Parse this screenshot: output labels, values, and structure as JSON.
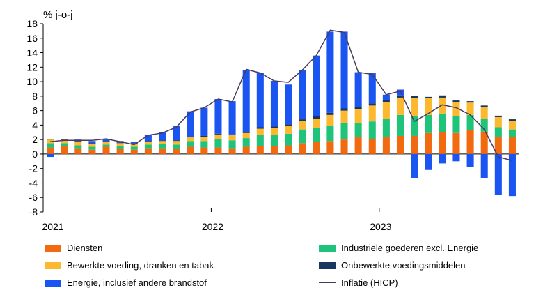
{
  "chart_data": {
    "type": "bar",
    "stacked": true,
    "unit_label": "% j-o-j",
    "ylim": [
      -8,
      18
    ],
    "y_ticks": [
      -8,
      -6,
      -4,
      -2,
      0,
      2,
      4,
      6,
      8,
      10,
      12,
      14,
      16,
      18
    ],
    "x_tick_labels": [
      "2021",
      "2022",
      "2023"
    ],
    "categories": [
      "2021-01",
      "2021-02",
      "2021-03",
      "2021-04",
      "2021-05",
      "2021-06",
      "2021-07",
      "2021-08",
      "2021-09",
      "2021-10",
      "2021-11",
      "2021-12",
      "2022-01",
      "2022-02",
      "2022-03",
      "2022-04",
      "2022-05",
      "2022-06",
      "2022-07",
      "2022-08",
      "2022-09",
      "2022-10",
      "2022-11",
      "2022-12",
      "2023-01",
      "2023-02",
      "2023-03",
      "2023-04",
      "2023-05",
      "2023-06",
      "2023-07",
      "2023-08",
      "2023-09",
      "2023-10"
    ],
    "series": [
      {
        "name": "Diensten",
        "color": "#f26a10",
        "values": [
          0.9,
          1.1,
          0.8,
          0.6,
          1.0,
          0.7,
          0.6,
          0.8,
          0.8,
          0.7,
          1.0,
          0.9,
          0.9,
          0.8,
          1.0,
          1.1,
          1.1,
          1.2,
          1.5,
          1.7,
          1.8,
          2.0,
          2.3,
          2.1,
          2.3,
          2.5,
          2.5,
          2.9,
          3.0,
          2.9,
          3.3,
          3.1,
          2.3,
          2.4
        ]
      },
      {
        "name": "Industriële goederen excl. Energie",
        "color": "#1fc47a",
        "values": [
          0.6,
          0.4,
          0.4,
          0.4,
          0.3,
          0.4,
          0.4,
          0.5,
          0.6,
          0.6,
          0.8,
          0.9,
          1.2,
          1.1,
          1.2,
          1.5,
          1.5,
          1.6,
          1.9,
          1.9,
          2.1,
          2.3,
          2.0,
          2.4,
          2.6,
          2.9,
          2.7,
          2.5,
          2.6,
          2.3,
          2.1,
          1.8,
          1.4,
          1.0
        ]
      },
      {
        "name": "Bewerkte voeding, dranken en tabak",
        "color": "#fcb930",
        "values": [
          0.5,
          0.4,
          0.5,
          0.4,
          0.4,
          0.4,
          0.4,
          0.4,
          0.4,
          0.5,
          0.5,
          0.6,
          0.6,
          0.7,
          0.7,
          0.9,
          1.0,
          1.1,
          1.2,
          1.3,
          1.5,
          1.7,
          1.9,
          2.2,
          2.3,
          2.4,
          2.5,
          2.3,
          2.2,
          2.0,
          1.7,
          1.6,
          1.4,
          1.2
        ]
      },
      {
        "name": "Onbewerkte voedingsmiddelen",
        "color": "#17375e",
        "values": [
          0.1,
          0.1,
          0.1,
          0.1,
          0.1,
          0.1,
          0.1,
          0.1,
          0.1,
          0.1,
          0.1,
          0.1,
          0.1,
          0.1,
          0.1,
          0.2,
          0.2,
          0.2,
          0.2,
          0.3,
          0.3,
          0.3,
          0.3,
          0.3,
          0.3,
          0.3,
          0.3,
          0.2,
          0.3,
          0.2,
          0.2,
          0.2,
          0.2,
          0.2
        ]
      },
      {
        "name": "Energie, inclusief andere brandstof",
        "color": "#1a55f2",
        "values": [
          -0.4,
          0.0,
          0.2,
          0.3,
          0.3,
          0.2,
          0.2,
          0.8,
          1.1,
          2.0,
          3.5,
          3.9,
          4.8,
          4.6,
          8.6,
          7.5,
          6.3,
          5.5,
          6.8,
          8.4,
          11.2,
          10.6,
          4.8,
          4.2,
          0.7,
          0.8,
          -3.3,
          -2.2,
          -1.3,
          -1.0,
          -1.8,
          -3.3,
          -5.6,
          -5.8
        ]
      },
      {
        "name": "Inflatie (HICP)",
        "color": "#4a3a5a",
        "type": "line",
        "values": [
          1.7,
          1.9,
          1.9,
          1.9,
          2.1,
          1.7,
          1.3,
          2.6,
          2.9,
          3.7,
          5.8,
          6.4,
          7.6,
          7.2,
          11.7,
          11.2,
          10.1,
          9.9,
          11.6,
          13.6,
          17.1,
          16.8,
          11.3,
          11.0,
          8.2,
          8.7,
          4.5,
          5.6,
          6.8,
          6.4,
          5.4,
          3.4,
          -0.4,
          -0.9
        ]
      }
    ],
    "grid": false,
    "legend_position": "bottom"
  },
  "legend": {
    "items": [
      {
        "label": "Diensten",
        "color": "#f26a10",
        "kind": "bar"
      },
      {
        "label": "Industriële goederen excl. Energie",
        "color": "#1fc47a",
        "kind": "bar"
      },
      {
        "label": "Bewerkte voeding, dranken en tabak",
        "color": "#fcb930",
        "kind": "bar"
      },
      {
        "label": "Onbewerkte voedingsmiddelen",
        "color": "#17375e",
        "kind": "bar"
      },
      {
        "label": "Energie, inclusief andere brandstof",
        "color": "#1a55f2",
        "kind": "bar"
      },
      {
        "label": "Inflatie (HICP)",
        "color": "#4a3a5a",
        "kind": "line"
      }
    ]
  }
}
